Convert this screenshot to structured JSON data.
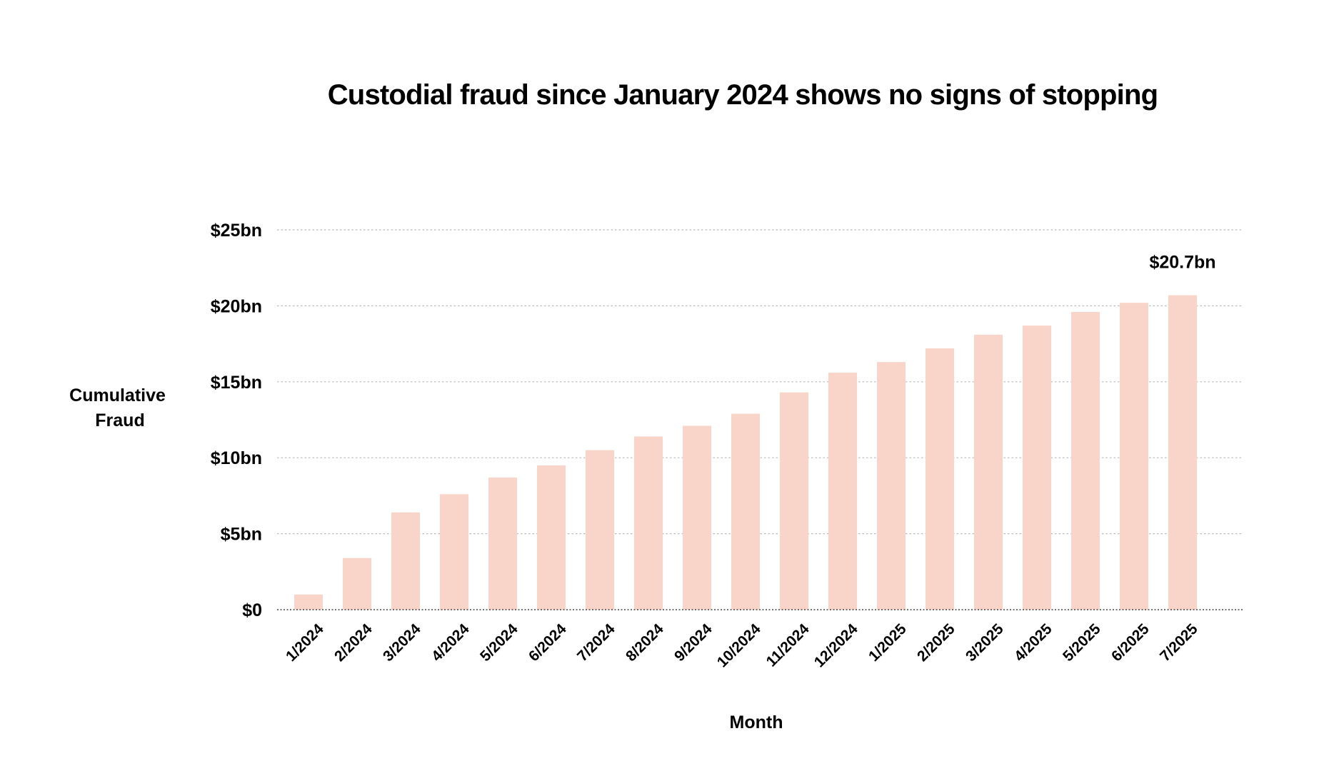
{
  "chart_data": {
    "type": "bar",
    "title": "Custodial fraud since January 2024 shows no signs of stopping",
    "xlabel": "Month",
    "ylabel": [
      "Cumulative",
      "Fraud"
    ],
    "categories": [
      "1/2024",
      "2/2024",
      "3/2024",
      "4/2024",
      "5/2024",
      "6/2024",
      "7/2024",
      "8/2024",
      "9/2024",
      "10/2024",
      "11/2024",
      "12/2024",
      "1/2025",
      "2/2025",
      "3/2025",
      "4/2025",
      "5/2025",
      "6/2025",
      "7/2025"
    ],
    "values": [
      1.0,
      3.4,
      6.4,
      7.6,
      8.7,
      9.5,
      10.5,
      11.4,
      12.1,
      12.9,
      14.3,
      15.6,
      16.3,
      17.2,
      18.1,
      18.7,
      19.6,
      20.2,
      20.7
    ],
    "ylim": [
      0,
      25
    ],
    "yticks": [
      0,
      5,
      10,
      15,
      20,
      25
    ],
    "ytick_labels": [
      "$0",
      "$5bn",
      "$10bn",
      "$15bn",
      "$20bn",
      "$25bn"
    ],
    "annotations": [
      {
        "category": "7/2025",
        "text": "$20.7bn"
      }
    ],
    "bar_color": "#f8d5c8",
    "grid": true
  }
}
